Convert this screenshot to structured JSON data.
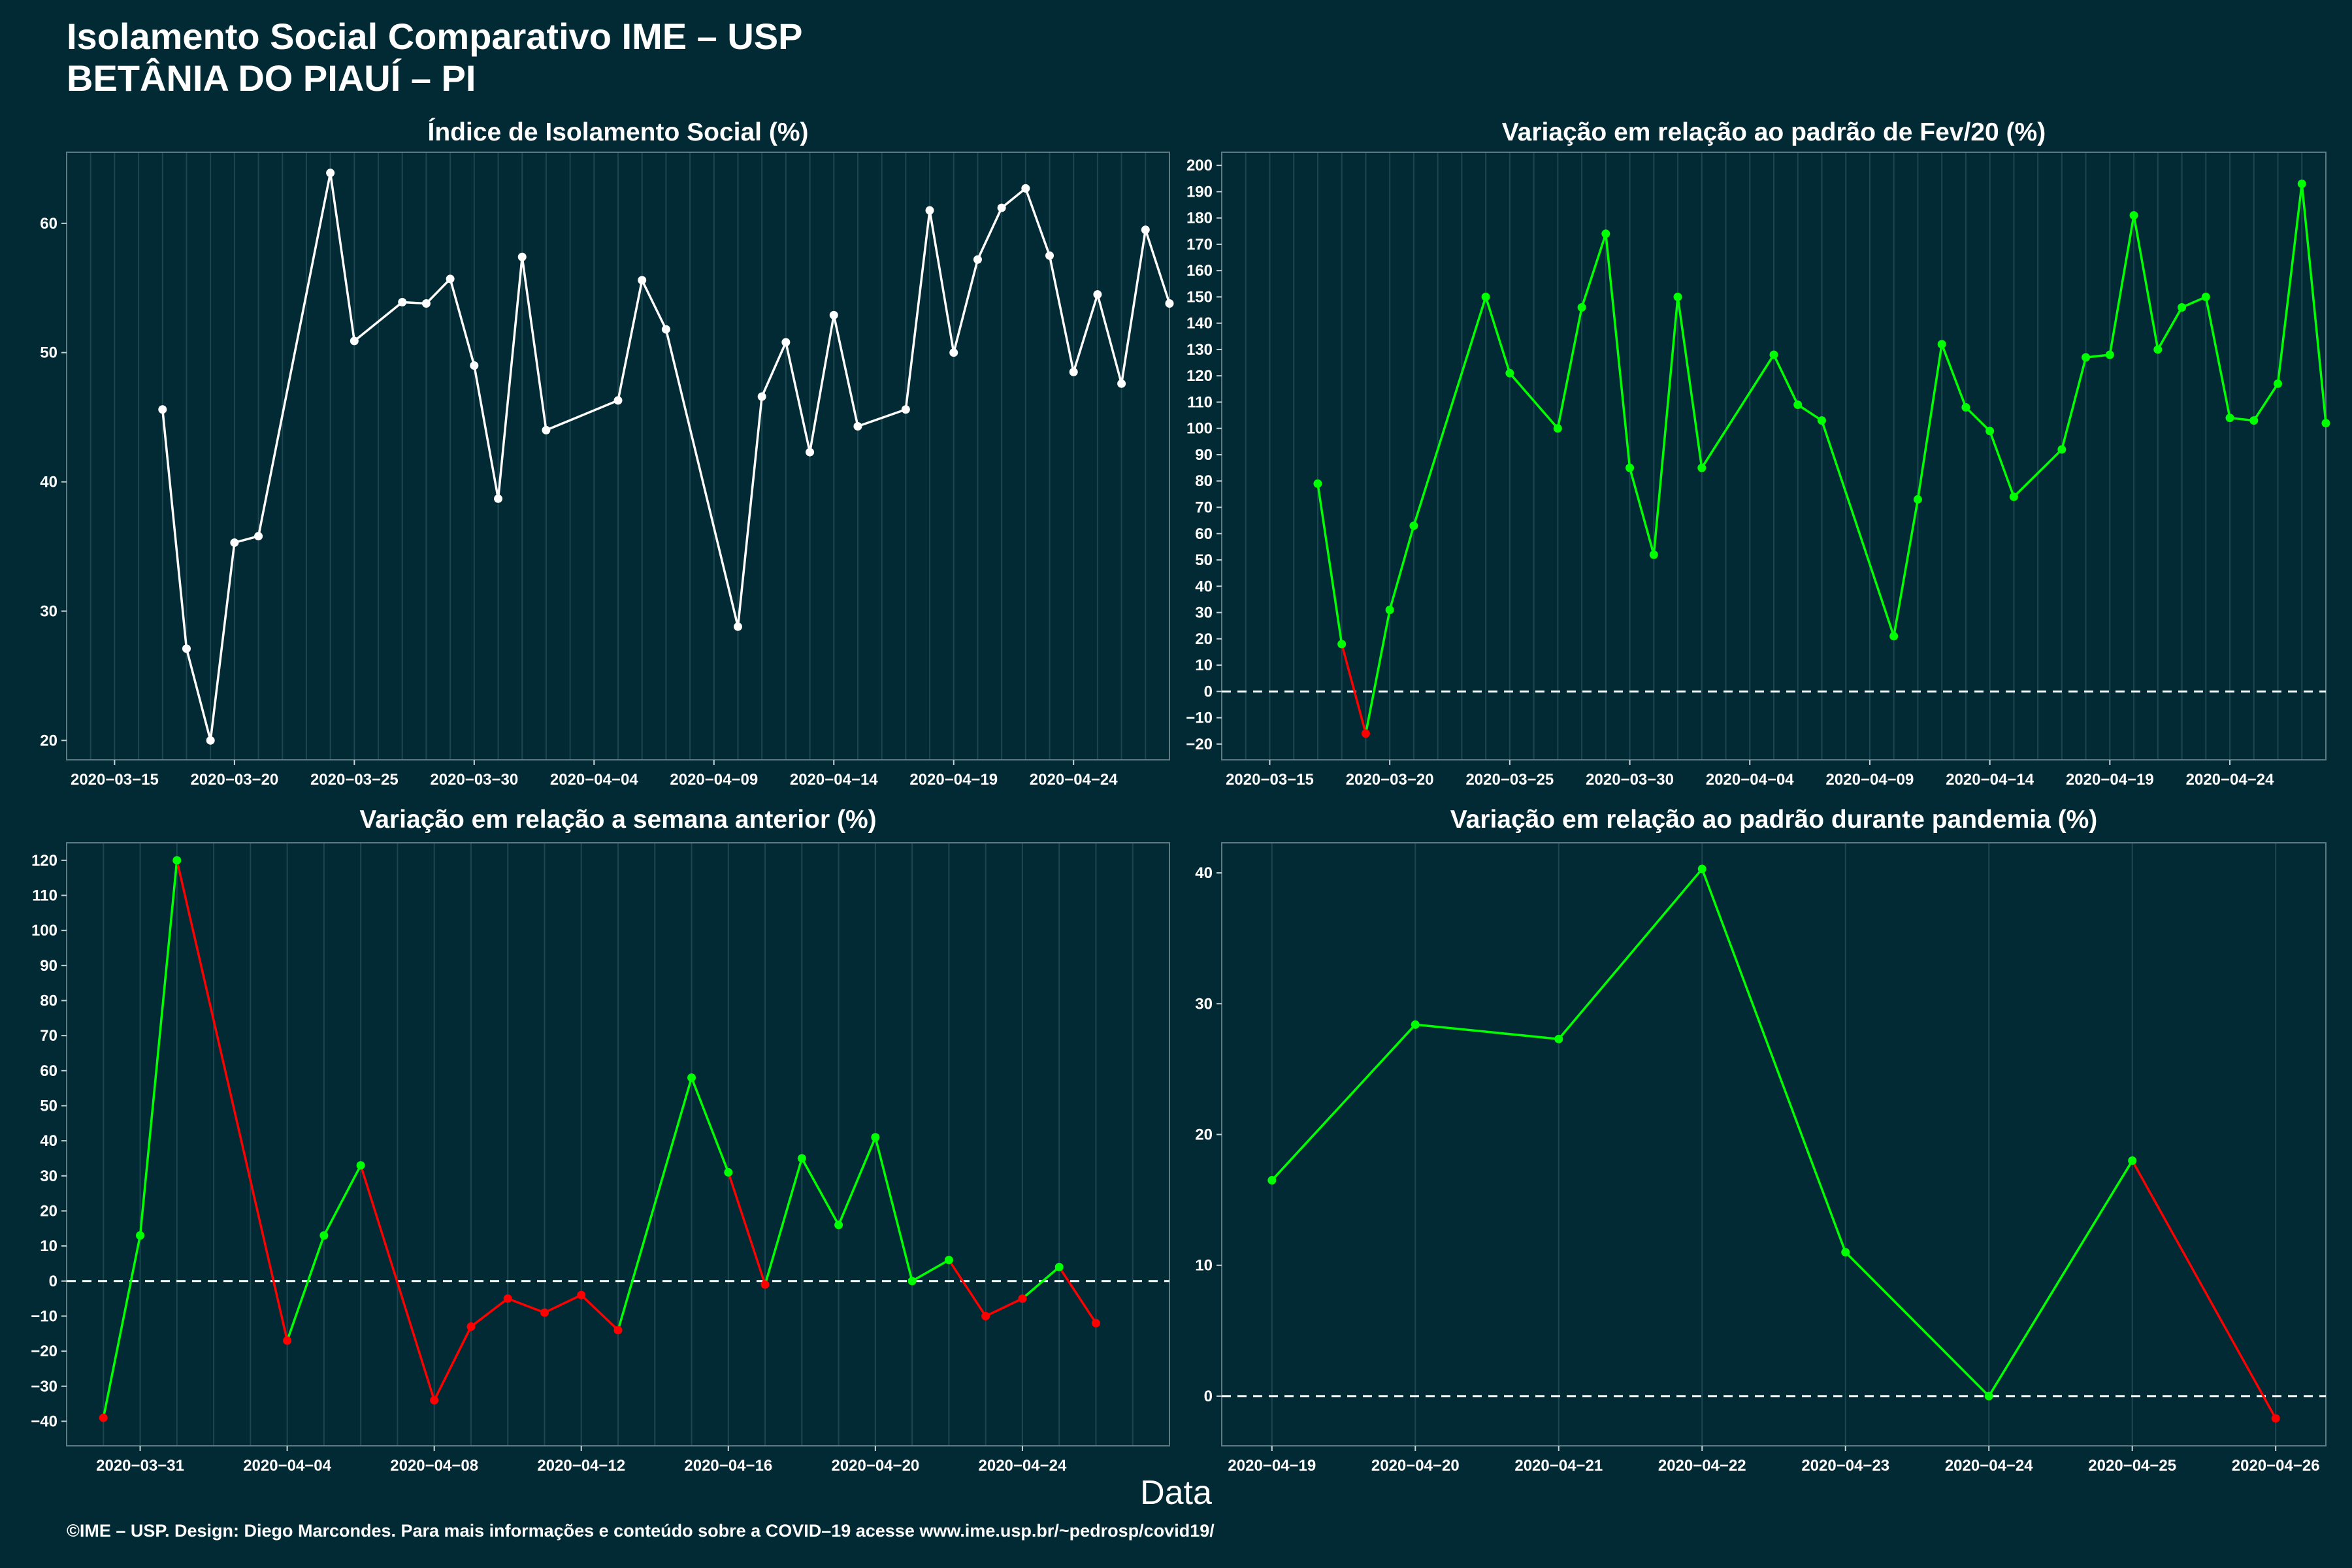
{
  "header": {
    "title": "Isolamento Social Comparativo IME – USP",
    "subtitle": "BETÂNIA DO PIAUÍ – PI"
  },
  "x_caption": "Data",
  "footer": "©IME – USP. Design: Diego Marcondes. Para mais informações e conteúdo sobre a COVID–19 acesse www.ime.usp.br/~pedrosp/covid19/",
  "colors": {
    "background": "#022a35",
    "positive": "#00ff00",
    "negative": "#ff0000",
    "neutral": "#ffffff",
    "grid": "#1c4650"
  },
  "chart_data": [
    {
      "type": "line",
      "title": "Índice de Isolamento Social (%)",
      "xlabel": "Data",
      "ylabel": "",
      "x_type": "date",
      "xticks": [
        "2020-03-15",
        "2020-03-20",
        "2020-03-25",
        "2020-03-30",
        "2020-04-04",
        "2020-04-09",
        "2020-04-14",
        "2020-04-19",
        "2020-04-24"
      ],
      "yticks": [
        20,
        30,
        40,
        50,
        60
      ],
      "xlim": [
        "2020-03-13",
        "2020-04-28"
      ],
      "ylim": [
        18.5,
        65.5
      ],
      "grid": true,
      "zero_line": false,
      "colored_by_sign": false,
      "points": [
        [
          "2020-03-17",
          45.6
        ],
        [
          "2020-03-18",
          27.1
        ],
        [
          "2020-03-19",
          20.0
        ],
        [
          "2020-03-20",
          35.3
        ],
        [
          "2020-03-21",
          35.8
        ],
        [
          "2020-03-24",
          63.9
        ],
        [
          "2020-03-25",
          50.9
        ],
        [
          "2020-03-27",
          53.9
        ],
        [
          "2020-03-28",
          53.8
        ],
        [
          "2020-03-29",
          55.7
        ],
        [
          "2020-03-30",
          49.0
        ],
        [
          "2020-03-31",
          38.7
        ],
        [
          "2020-04-01",
          57.4
        ],
        [
          "2020-04-02",
          44.0
        ],
        [
          "2020-04-05",
          46.3
        ],
        [
          "2020-04-06",
          55.6
        ],
        [
          "2020-04-07",
          51.8
        ],
        [
          "2020-04-10",
          28.8
        ],
        [
          "2020-04-11",
          46.6
        ],
        [
          "2020-04-12",
          50.8
        ],
        [
          "2020-04-13",
          42.3
        ],
        [
          "2020-04-14",
          52.9
        ],
        [
          "2020-04-15",
          44.3
        ],
        [
          "2020-04-17",
          45.6
        ],
        [
          "2020-04-18",
          61.0
        ],
        [
          "2020-04-19",
          50.0
        ],
        [
          "2020-04-20",
          57.2
        ],
        [
          "2020-04-21",
          61.2
        ],
        [
          "2020-04-22",
          62.7
        ],
        [
          "2020-04-23",
          57.5
        ],
        [
          "2020-04-24",
          48.5
        ],
        [
          "2020-04-25",
          54.5
        ],
        [
          "2020-04-26",
          47.6
        ],
        [
          "2020-04-27",
          59.5
        ],
        [
          "2020-04-28",
          53.8
        ]
      ]
    },
    {
      "type": "line",
      "title": "Variação em relação ao padrão de Fev/20 (%)",
      "xlabel": "Data",
      "ylabel": "",
      "x_type": "date",
      "xticks": [
        "2020-03-15",
        "2020-03-20",
        "2020-03-25",
        "2020-03-30",
        "2020-04-04",
        "2020-04-09",
        "2020-04-14",
        "2020-04-19",
        "2020-04-24"
      ],
      "yticks": [
        -20,
        -10,
        0,
        10,
        20,
        30,
        40,
        50,
        60,
        70,
        80,
        90,
        100,
        110,
        120,
        130,
        140,
        150,
        160,
        170,
        180,
        190,
        200
      ],
      "xlim": [
        "2020-03-13",
        "2020-04-28"
      ],
      "ylim": [
        -26,
        205
      ],
      "grid": true,
      "zero_line": true,
      "colored_by_sign": true,
      "points": [
        [
          "2020-03-17",
          79
        ],
        [
          "2020-03-18",
          18
        ],
        [
          "2020-03-19",
          -16
        ],
        [
          "2020-03-20",
          31
        ],
        [
          "2020-03-21",
          63
        ],
        [
          "2020-03-24",
          150
        ],
        [
          "2020-03-25",
          121
        ],
        [
          "2020-03-27",
          100
        ],
        [
          "2020-03-28",
          146
        ],
        [
          "2020-03-29",
          174
        ],
        [
          "2020-03-30",
          85
        ],
        [
          "2020-03-31",
          52
        ],
        [
          "2020-04-01",
          150
        ],
        [
          "2020-04-02",
          85
        ],
        [
          "2020-04-05",
          128
        ],
        [
          "2020-04-06",
          109
        ],
        [
          "2020-04-07",
          103
        ],
        [
          "2020-04-10",
          21
        ],
        [
          "2020-04-11",
          73
        ],
        [
          "2020-04-12",
          132
        ],
        [
          "2020-04-13",
          108
        ],
        [
          "2020-04-14",
          99
        ],
        [
          "2020-04-15",
          74
        ],
        [
          "2020-04-17",
          92
        ],
        [
          "2020-04-18",
          127
        ],
        [
          "2020-04-19",
          128
        ],
        [
          "2020-04-20",
          181
        ],
        [
          "2020-04-21",
          130
        ],
        [
          "2020-04-22",
          146
        ],
        [
          "2020-04-23",
          150
        ],
        [
          "2020-04-24",
          104
        ],
        [
          "2020-04-25",
          103
        ],
        [
          "2020-04-26",
          117
        ],
        [
          "2020-04-27",
          193
        ],
        [
          "2020-04-28",
          102
        ]
      ]
    },
    {
      "type": "line",
      "title": "Variação em relação a semana anterior (%)",
      "xlabel": "Data",
      "ylabel": "",
      "x_type": "date",
      "xticks": [
        "2020-03-31",
        "2020-04-04",
        "2020-04-08",
        "2020-04-12",
        "2020-04-16",
        "2020-04-20",
        "2020-04-24"
      ],
      "yticks": [
        -40,
        -30,
        -20,
        -10,
        0,
        10,
        20,
        30,
        40,
        50,
        60,
        70,
        80,
        90,
        100,
        110,
        120
      ],
      "xlim": [
        "2020-03-29",
        "2020-04-28"
      ],
      "ylim": [
        -47,
        125
      ],
      "grid": true,
      "zero_line": true,
      "colored_by_sign": true,
      "points": [
        [
          "2020-03-30",
          -39
        ],
        [
          "2020-03-31",
          13
        ],
        [
          "2020-04-01",
          120
        ],
        [
          "2020-04-04",
          -17
        ],
        [
          "2020-04-05",
          13
        ],
        [
          "2020-04-06",
          33
        ],
        [
          "2020-04-08",
          -34
        ],
        [
          "2020-04-09",
          -13
        ],
        [
          "2020-04-10",
          -5
        ],
        [
          "2020-04-11",
          -9
        ],
        [
          "2020-04-12",
          -4
        ],
        [
          "2020-04-13",
          -14
        ],
        [
          "2020-04-15",
          58
        ],
        [
          "2020-04-16",
          31
        ],
        [
          "2020-04-17",
          -1
        ],
        [
          "2020-04-18",
          35
        ],
        [
          "2020-04-19",
          16
        ],
        [
          "2020-04-20",
          41
        ],
        [
          "2020-04-21",
          0
        ],
        [
          "2020-04-22",
          6
        ],
        [
          "2020-04-23",
          -10
        ],
        [
          "2020-04-24",
          -5
        ],
        [
          "2020-04-25",
          4
        ],
        [
          "2020-04-26",
          -12
        ]
      ]
    },
    {
      "type": "line",
      "title": "Variação em relação ao padrão durante pandemia (%)",
      "xlabel": "Data",
      "ylabel": "",
      "x_type": "date",
      "xticks": [
        "2020-04-19",
        "2020-04-20",
        "2020-04-21",
        "2020-04-22",
        "2020-04-23",
        "2020-04-24",
        "2020-04-25",
        "2020-04-26"
      ],
      "yticks": [
        0,
        10,
        20,
        30,
        40
      ],
      "xlim": [
        "2020-04-18.65",
        "2020-04-26.35"
      ],
      "ylim": [
        -3.8,
        42.3
      ],
      "grid": true,
      "zero_line": true,
      "colored_by_sign": true,
      "points": [
        [
          "2020-04-19",
          16.5
        ],
        [
          "2020-04-20",
          28.4
        ],
        [
          "2020-04-21",
          27.3
        ],
        [
          "2020-04-22",
          40.3
        ],
        [
          "2020-04-23",
          11.0
        ],
        [
          "2020-04-24",
          0.0
        ],
        [
          "2020-04-25",
          18.0
        ],
        [
          "2020-04-26",
          -1.7
        ]
      ]
    }
  ]
}
